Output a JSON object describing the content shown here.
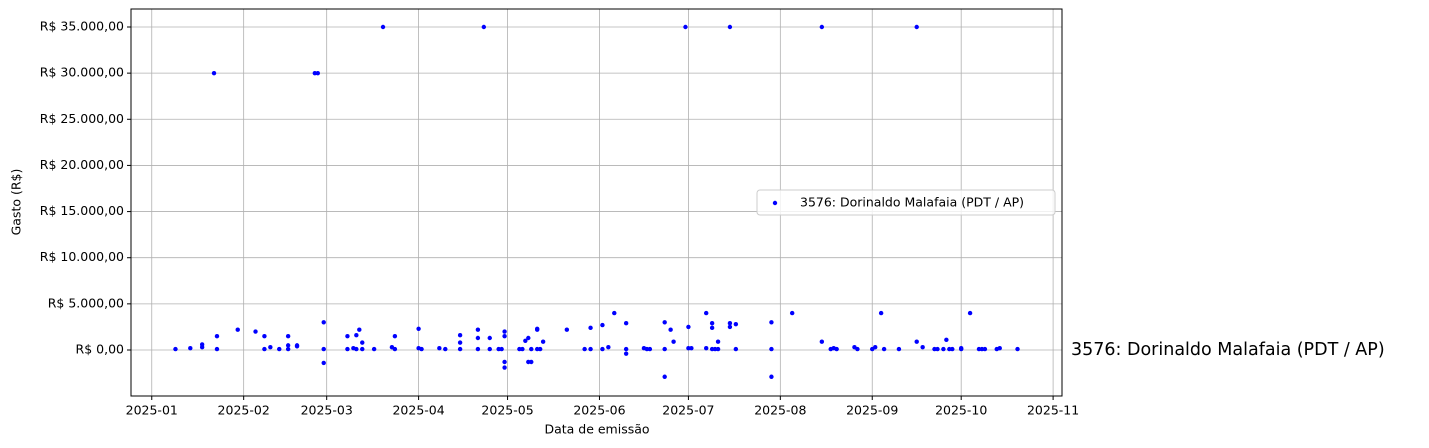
{
  "chart_data": {
    "type": "scatter",
    "x_label": "Data de emissão",
    "y_label": "Gasto (R$)",
    "annotation": "3576: Dorinaldo Malafaia (PDT / AP)",
    "annotation_color": "blue",
    "grid": true,
    "legend": "center right",
    "xlim": [
      "2024-12-25",
      "2025-11-04"
    ],
    "xticks": [
      "2025-01",
      "2025-02",
      "2025-03",
      "2025-04",
      "2025-05",
      "2025-06",
      "2025-07",
      "2025-08",
      "2025-09",
      "2025-10",
      "2025-11"
    ],
    "ylim": [
      -4985,
      36950
    ],
    "yticks": [
      {
        "value": 0,
        "label": "R$ 0,00"
      },
      {
        "value": 5000,
        "label": "R$ 5.000,00"
      },
      {
        "value": 10000,
        "label": "R$ 10.000,00"
      },
      {
        "value": 15000,
        "label": "R$ 15.000,00"
      },
      {
        "value": 20000,
        "label": "R$ 20.000,00"
      },
      {
        "value": 25000,
        "label": "R$ 25.000,00"
      },
      {
        "value": 30000,
        "label": "R$ 30.000,00"
      },
      {
        "value": 35000,
        "label": "R$ 35.000,00"
      }
    ],
    "series": [
      {
        "name": "3576: Dorinaldo Malafaia (PDT / AP)",
        "color": "blue",
        "x": [
          "2025-01-09",
          "2025-01-14",
          "2025-01-18",
          "2025-01-18",
          "2025-01-22",
          "2025-01-23",
          "2025-01-23",
          "2025-01-30",
          "2025-02-05",
          "2025-02-08",
          "2025-02-08",
          "2025-02-10",
          "2025-02-13",
          "2025-02-16",
          "2025-02-16",
          "2025-02-16",
          "2025-02-19",
          "2025-02-19",
          "2025-02-25",
          "2025-02-26",
          "2025-02-28",
          "2025-02-28",
          "2025-02-28",
          "2025-03-08",
          "2025-03-08",
          "2025-03-10",
          "2025-03-11",
          "2025-03-11",
          "2025-03-12",
          "2025-03-13",
          "2025-03-13",
          "2025-03-17",
          "2025-03-20",
          "2025-03-23",
          "2025-03-24",
          "2025-03-24",
          "2025-04-01",
          "2025-04-01",
          "2025-04-02",
          "2025-04-08",
          "2025-04-10",
          "2025-04-15",
          "2025-04-15",
          "2025-04-15",
          "2025-04-21",
          "2025-04-21",
          "2025-04-21",
          "2025-04-23",
          "2025-04-25",
          "2025-04-25",
          "2025-04-28",
          "2025-04-29",
          "2025-04-30",
          "2025-04-30",
          "2025-04-30",
          "2025-04-30",
          "2025-05-05",
          "2025-05-06",
          "2025-05-07",
          "2025-05-08",
          "2025-05-08",
          "2025-05-09",
          "2025-05-09",
          "2025-05-11",
          "2025-05-11",
          "2025-05-11",
          "2025-05-12",
          "2025-05-13",
          "2025-05-21",
          "2025-05-27",
          "2025-05-29",
          "2025-05-29",
          "2025-06-02",
          "2025-06-02",
          "2025-06-04",
          "2025-06-06",
          "2025-06-10",
          "2025-06-10",
          "2025-06-10",
          "2025-06-16",
          "2025-06-17",
          "2025-06-18",
          "2025-06-23",
          "2025-06-23",
          "2025-06-23",
          "2025-06-25",
          "2025-06-26",
          "2025-06-30",
          "2025-07-01",
          "2025-07-01",
          "2025-07-02",
          "2025-07-07",
          "2025-07-07",
          "2025-07-09",
          "2025-07-09",
          "2025-07-09",
          "2025-07-10",
          "2025-07-11",
          "2025-07-11",
          "2025-07-15",
          "2025-07-15",
          "2025-07-15",
          "2025-07-17",
          "2025-07-17",
          "2025-07-29",
          "2025-07-29",
          "2025-07-29",
          "2025-08-05",
          "2025-08-15",
          "2025-08-15",
          "2025-08-18",
          "2025-08-19",
          "2025-08-20",
          "2025-08-26",
          "2025-08-27",
          "2025-09-01",
          "2025-09-02",
          "2025-09-04",
          "2025-09-05",
          "2025-09-10",
          "2025-09-16",
          "2025-09-16",
          "2025-09-18",
          "2025-09-22",
          "2025-09-23",
          "2025-09-25",
          "2025-09-26",
          "2025-09-27",
          "2025-09-28",
          "2025-10-01",
          "2025-10-01",
          "2025-10-04",
          "2025-10-07",
          "2025-10-08",
          "2025-10-09",
          "2025-10-13",
          "2025-10-14",
          "2025-10-20"
        ],
        "values": [
          100,
          200,
          600,
          300,
          30000,
          1500,
          100,
          2200,
          2000,
          1500,
          100,
          300,
          100,
          1500,
          500,
          100,
          400,
          500,
          30000,
          30000,
          3000,
          100,
          -1400,
          1500,
          100,
          200,
          1600,
          100,
          2200,
          800,
          100,
          100,
          35000,
          300,
          1500,
          100,
          2300,
          200,
          100,
          200,
          100,
          1600,
          800,
          100,
          2200,
          1300,
          100,
          35000,
          1300,
          100,
          100,
          100,
          2000,
          1500,
          -1300,
          -1900,
          100,
          100,
          1000,
          1300,
          -1300,
          -1300,
          100,
          2300,
          2200,
          100,
          100,
          900,
          2200,
          100,
          2400,
          100,
          2700,
          100,
          300,
          4000,
          2900,
          100,
          -400,
          200,
          100,
          100,
          3000,
          100,
          -2900,
          2200,
          900,
          35000,
          2500,
          200,
          200,
          4000,
          200,
          2900,
          2400,
          100,
          100,
          900,
          100,
          35000,
          2900,
          2500,
          2800,
          100,
          3000,
          100,
          -2900,
          4000,
          35000,
          900,
          100,
          200,
          100,
          300,
          100,
          100,
          300,
          4000,
          100,
          100,
          35000,
          900,
          300,
          100,
          100,
          100,
          1100,
          100,
          100,
          200,
          100,
          4000,
          100,
          100,
          100,
          100,
          200,
          100
        ]
      }
    ]
  }
}
